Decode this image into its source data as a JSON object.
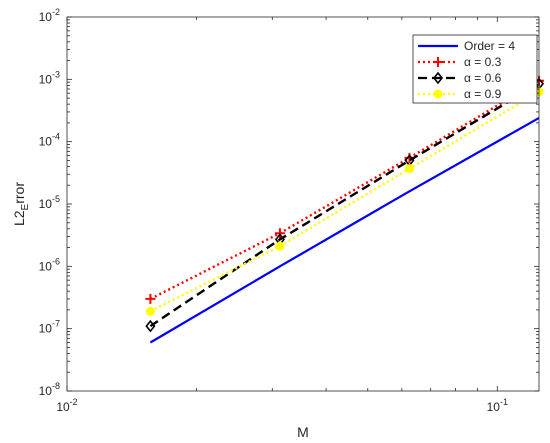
{
  "chart_data": {
    "type": "line",
    "xscale": "log",
    "yscale": "log",
    "xlim": [
      0.01,
      0.125
    ],
    "ylim": [
      1e-08,
      0.01
    ],
    "xlabel": "M",
    "ylabel": {
      "base": "L2",
      "sub": "E",
      "rest": "rror"
    },
    "grid": false,
    "legend_position": "top-right",
    "x_ticks": [
      {
        "value": 0.01,
        "base": "10",
        "exp": "-2"
      },
      {
        "value": 0.1,
        "base": "10",
        "exp": "-1"
      }
    ],
    "y_ticks": [
      {
        "value": 1e-08,
        "base": "10",
        "exp": "-8"
      },
      {
        "value": 1e-07,
        "base": "10",
        "exp": "-7"
      },
      {
        "value": 1e-06,
        "base": "10",
        "exp": "-6"
      },
      {
        "value": 1e-05,
        "base": "10",
        "exp": "-5"
      },
      {
        "value": 0.0001,
        "base": "10",
        "exp": "-4"
      },
      {
        "value": 0.001,
        "base": "10",
        "exp": "-3"
      },
      {
        "value": 0.01,
        "base": "10",
        "exp": "-2"
      }
    ],
    "series": [
      {
        "name": "Order = 4",
        "color": "#0000ff",
        "dash": "solid",
        "marker": "none",
        "x": [
          0.015625,
          0.03125,
          0.0625,
          0.125
        ],
        "y": [
          6e-08,
          1e-06,
          1.6e-05,
          0.00024
        ]
      },
      {
        "name": "α = 0.3",
        "color": "#ff0000",
        "dash": "dotted",
        "marker": "plus",
        "x": [
          0.015625,
          0.03125,
          0.0625,
          0.125
        ],
        "y": [
          3e-07,
          3.4e-06,
          5.5e-05,
          0.00095
        ]
      },
      {
        "name": "α = 0.6",
        "color": "#000000",
        "dash": "dashed",
        "marker": "diamond",
        "x": [
          0.015625,
          0.03125,
          0.0625,
          0.125
        ],
        "y": [
          1.1e-07,
          2.7e-06,
          5e-05,
          0.00085
        ]
      },
      {
        "name": "α = 0.9",
        "color": "#ffff00",
        "dash": "dotted",
        "marker": "circle",
        "x": [
          0.015625,
          0.03125,
          0.0625,
          0.125
        ],
        "y": [
          1.9e-07,
          2.1e-06,
          3.7e-05,
          0.00063
        ]
      }
    ]
  }
}
